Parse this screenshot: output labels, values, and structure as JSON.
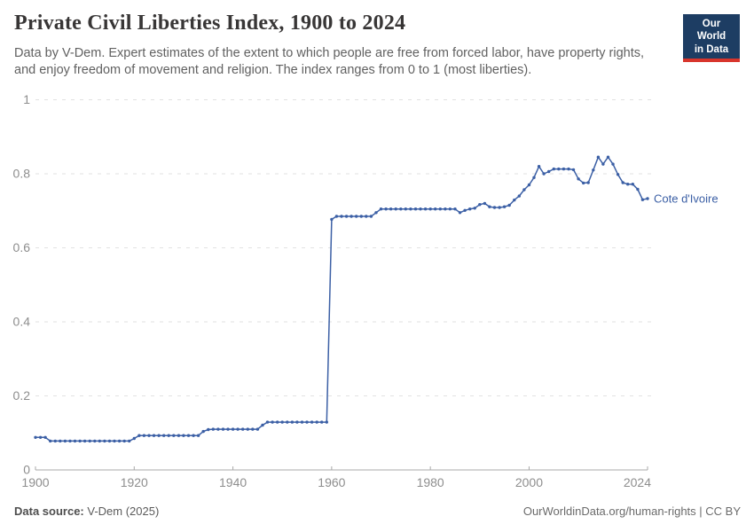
{
  "header": {
    "title": "Private Civil Liberties Index, 1900 to 2024",
    "subtitle_line1": "Data by V-Dem. Expert estimates of the extent to which people are free from forced labor, have property rights,",
    "subtitle_line2": "and enjoy freedom of movement and religion. The index ranges from 0 to 1 (most liberties)."
  },
  "logo": {
    "line1": "Our World",
    "line2": "in Data",
    "bg_color": "#1d3d63",
    "stripe_color": "#d8352c"
  },
  "chart_data": {
    "type": "line",
    "title": "Private Civil Liberties Index, 1900 to 2024",
    "xlabel": "",
    "ylabel": "",
    "xlim": [
      1900,
      2024
    ],
    "ylim": [
      0,
      1
    ],
    "grid": "horizontal dashed",
    "x_ticks": [
      1900,
      1920,
      1940,
      1960,
      1980,
      2000,
      2024
    ],
    "y_ticks": [
      0,
      0.2,
      0.4,
      0.6,
      0.8,
      1
    ],
    "end_label": "Cote d'Ivoire",
    "legend_position": "end-of-line",
    "series": [
      {
        "name": "Cote d'Ivoire",
        "color": "#3b5fa5",
        "x_start": 1900,
        "x_end": 2024,
        "values": [
          0.088,
          0.088,
          0.088,
          0.078,
          0.078,
          0.078,
          0.078,
          0.078,
          0.078,
          0.078,
          0.078,
          0.078,
          0.078,
          0.078,
          0.078,
          0.078,
          0.078,
          0.078,
          0.078,
          0.078,
          0.085,
          0.093,
          0.093,
          0.093,
          0.093,
          0.093,
          0.093,
          0.093,
          0.093,
          0.093,
          0.093,
          0.093,
          0.093,
          0.093,
          0.104,
          0.109,
          0.11,
          0.11,
          0.11,
          0.11,
          0.11,
          0.11,
          0.11,
          0.11,
          0.11,
          0.11,
          0.121,
          0.129,
          0.129,
          0.129,
          0.129,
          0.129,
          0.129,
          0.129,
          0.129,
          0.129,
          0.129,
          0.129,
          0.129,
          0.129,
          0.677,
          0.685,
          0.685,
          0.685,
          0.685,
          0.685,
          0.685,
          0.685,
          0.685,
          0.695,
          0.705,
          0.705,
          0.705,
          0.705,
          0.705,
          0.705,
          0.705,
          0.705,
          0.705,
          0.705,
          0.705,
          0.705,
          0.705,
          0.705,
          0.705,
          0.705,
          0.695,
          0.701,
          0.705,
          0.707,
          0.717,
          0.72,
          0.711,
          0.709,
          0.709,
          0.711,
          0.715,
          0.729,
          0.74,
          0.757,
          0.77,
          0.79,
          0.82,
          0.8,
          0.806,
          0.813,
          0.813,
          0.813,
          0.813,
          0.811,
          0.786,
          0.775,
          0.776,
          0.81,
          0.845,
          0.826,
          0.845,
          0.826,
          0.798,
          0.776,
          0.772,
          0.772,
          0.758,
          0.73,
          0.733
        ]
      }
    ]
  },
  "footer": {
    "source_label": "Data source:",
    "source_value": " V-Dem (2025)",
    "right_text": "OurWorldinData.org/human-rights | CC BY"
  },
  "colors": {
    "line": "#3b5fa5",
    "grid": "#e2e2e2",
    "axis": "#a8a8a8",
    "tick_label": "#8e8e8e"
  }
}
